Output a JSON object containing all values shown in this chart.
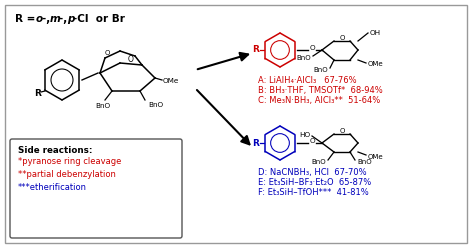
{
  "bg_color": "#ffffff",
  "red": "#cc0000",
  "blue": "#0000bb",
  "black": "#000000",
  "gray_border": "#999999",
  "side_box_border": "#555555",
  "title": "R = o-, m-, p-Cl  or Br",
  "rxn_A": "A: LiAlH₄·AlCl₃   67-76%",
  "rxn_B": "B: BH₃·THF, TMSOTf*  68-94%",
  "rxn_C": "C: Me₃N·BH₃, AlCl₃**  51-64%",
  "rxn_D": "D: NaCNBH₃, HCl  67-70%",
  "rxn_E": "E: Et₃SiH–BF₃·Et₂O  65-87%",
  "rxn_F": "F: Et₃SiH–TfOH***  41-81%",
  "side_title": "Side reactions:",
  "side1": "*pyranose ring cleavage",
  "side2": "**partial debenzylation",
  "side3": "***etherification"
}
